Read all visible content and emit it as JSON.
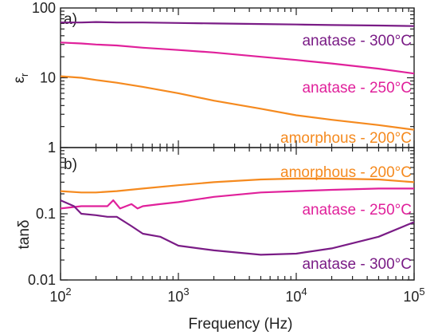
{
  "chart_data": [
    {
      "type": "line",
      "panel_label": "a)",
      "ylabel": "ε",
      "ylabel_sub": "r",
      "xscale": "log",
      "yscale": "log",
      "xlim": [
        100,
        100000
      ],
      "ylim": [
        1,
        100
      ],
      "yticks": [
        1,
        10,
        100
      ],
      "yticklabels": [
        "1",
        "10",
        "100"
      ],
      "series": [
        {
          "name": "anatase - 300°C",
          "color": "#7a1c86",
          "x": [
            100,
            150,
            200,
            300,
            500,
            1000,
            2000,
            5000,
            10000,
            20000,
            50000,
            100000
          ],
          "y": [
            62,
            62,
            63,
            62,
            62,
            61,
            60,
            59,
            58,
            57,
            56,
            55
          ]
        },
        {
          "name": "anatase - 250°C",
          "color": "#e0219b",
          "x": [
            100,
            150,
            200,
            300,
            500,
            1000,
            2000,
            5000,
            10000,
            20000,
            50000,
            100000
          ],
          "y": [
            32,
            31,
            30,
            29,
            27,
            25,
            23,
            20,
            18,
            16,
            13.5,
            11.5
          ]
        },
        {
          "name": "amorphous - 200°C",
          "color": "#f58a1f",
          "x": [
            100,
            150,
            200,
            300,
            500,
            1000,
            2000,
            5000,
            10000,
            20000,
            50000,
            100000
          ],
          "y": [
            10.5,
            10,
            9.3,
            8.5,
            7.4,
            6.0,
            4.7,
            3.6,
            2.9,
            2.5,
            2.1,
            1.8
          ]
        }
      ]
    },
    {
      "type": "line",
      "panel_label": "b)",
      "ylabel": "tanδ",
      "xlabel": "Frequency (Hz)",
      "xscale": "log",
      "yscale": "log",
      "xlim": [
        100,
        100000
      ],
      "ylim": [
        0.01,
        1
      ],
      "yticks": [
        0.01,
        0.1,
        1
      ],
      "yticklabels": [
        "0.01",
        "0.1",
        "1"
      ],
      "xticks": [
        100,
        1000,
        10000,
        100000
      ],
      "xtick_base": "10",
      "xtick_exponents": [
        "2",
        "3",
        "4",
        "5"
      ],
      "series": [
        {
          "name": "amorphous - 200°C",
          "color": "#f58a1f",
          "x": [
            100,
            150,
            200,
            300,
            500,
            1000,
            2000,
            5000,
            10000,
            20000,
            50000,
            100000
          ],
          "y": [
            0.22,
            0.21,
            0.21,
            0.22,
            0.24,
            0.27,
            0.3,
            0.33,
            0.34,
            0.34,
            0.33,
            0.3
          ]
        },
        {
          "name": "anatase - 250°C",
          "color": "#e0219b",
          "x": [
            100,
            150,
            200,
            250,
            280,
            320,
            400,
            450,
            500,
            700,
            1000,
            2000,
            5000,
            10000,
            20000,
            50000,
            100000
          ],
          "y": [
            0.12,
            0.13,
            0.13,
            0.13,
            0.16,
            0.12,
            0.14,
            0.12,
            0.13,
            0.14,
            0.15,
            0.18,
            0.21,
            0.22,
            0.23,
            0.24,
            0.24
          ]
        },
        {
          "name": "anatase - 300°C",
          "color": "#7a1c86",
          "x": [
            100,
            130,
            150,
            200,
            250,
            300,
            400,
            500,
            700,
            1000,
            2000,
            5000,
            10000,
            20000,
            50000,
            100000
          ],
          "y": [
            0.16,
            0.13,
            0.1,
            0.095,
            0.09,
            0.09,
            0.065,
            0.05,
            0.045,
            0.033,
            0.028,
            0.024,
            0.025,
            0.03,
            0.045,
            0.075
          ]
        }
      ]
    }
  ]
}
